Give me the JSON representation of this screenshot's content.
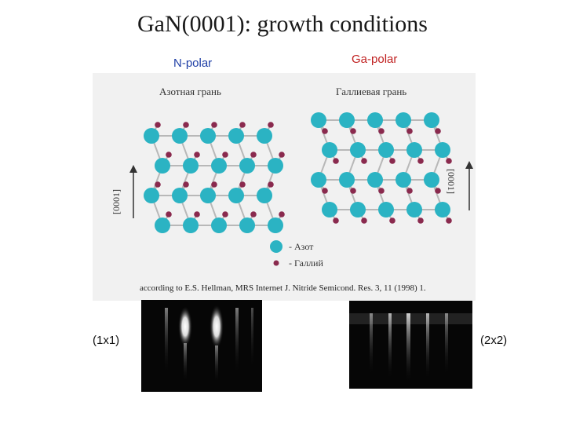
{
  "title": "GaN(0001): growth conditions",
  "labels": {
    "n_polar": "N-polar",
    "ga_polar": "Ga-polar"
  },
  "figure": {
    "left_face": "Азотная грань",
    "right_face": "Галлиевая грань",
    "axis_label": "[0001]",
    "legend": {
      "large_atom": "- Азот",
      "small_atom": "- Галлий"
    },
    "caption": "according to E.S. Hellman, MRS Internet J. Nitride Semicond. Res. 3, 11 (1998) 1."
  },
  "reconstructions": {
    "left": "(1x1)",
    "right": "(2x2)"
  },
  "colors": {
    "large_atom": "#2bb3c3",
    "small_atom": "#8a2a4e",
    "bond": "#b8b8b8"
  }
}
